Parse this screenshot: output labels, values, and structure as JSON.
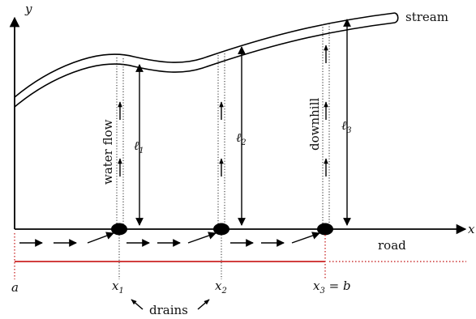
{
  "axes": {
    "y_label": "y",
    "x_label": "x"
  },
  "labels": {
    "stream": "stream",
    "road": "road",
    "water_flow": "water flow",
    "downhill": "downhill",
    "drains": "drains"
  },
  "positions": {
    "a": "a",
    "x1": {
      "base": "x",
      "sub": "1"
    },
    "x2": {
      "base": "x",
      "sub": "2"
    },
    "x3": {
      "base": "x",
      "sub": "3",
      "suffix": " = b"
    }
  },
  "lengths": {
    "l1": {
      "base": "ℓ",
      "sub": "1"
    },
    "l2": {
      "base": "ℓ",
      "sub": "2"
    },
    "l3": {
      "base": "ℓ",
      "sub": "3"
    }
  },
  "colors": {
    "ink": "#000000",
    "road_segment": "#cc2222"
  }
}
